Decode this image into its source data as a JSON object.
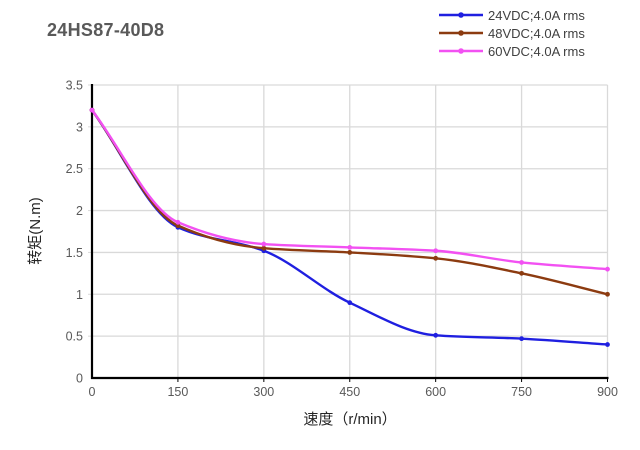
{
  "title": "24HS87-40D8",
  "legend": {
    "position": "top-right",
    "items": [
      {
        "label": "24VDC;4.0A rms",
        "color": "#1f1fe0"
      },
      {
        "label": "48VDC;4.0A rms",
        "color": "#8c3b10"
      },
      {
        "label": "60VDC;4.0A rms",
        "color": "#f251f2"
      }
    ]
  },
  "chart_data": {
    "type": "line",
    "title": "24HS87-40D8",
    "xlabel": "速度（r/min）",
    "ylabel": "转矩(N.m)",
    "x": [
      0,
      150,
      300,
      450,
      600,
      750,
      900
    ],
    "x_tick_labels": [
      "0",
      "150",
      "300",
      "450",
      "600",
      "750",
      "900"
    ],
    "y_tick_labels": [
      "0",
      "0.5",
      "1",
      "1.5",
      "2",
      "2.5",
      "3",
      "3.5"
    ],
    "xlim": [
      0,
      900
    ],
    "ylim": [
      0,
      3.5
    ],
    "grid": true,
    "grid_color": "#d9d9d9",
    "axis_color": "#000000",
    "tick_label_color": "#595959",
    "legend_position": "top-right",
    "series": [
      {
        "name": "24VDC;4.0A rms",
        "color": "#1f1fe0",
        "values": [
          3.2,
          1.8,
          1.52,
          0.9,
          0.51,
          0.47,
          0.4
        ]
      },
      {
        "name": "48VDC;4.0A rms",
        "color": "#8c3b10",
        "values": [
          3.2,
          1.82,
          1.55,
          1.5,
          1.43,
          1.25,
          1.0
        ]
      },
      {
        "name": "60VDC;4.0A rms",
        "color": "#f251f2",
        "values": [
          3.2,
          1.86,
          1.6,
          1.56,
          1.52,
          1.38,
          1.3
        ]
      }
    ]
  }
}
